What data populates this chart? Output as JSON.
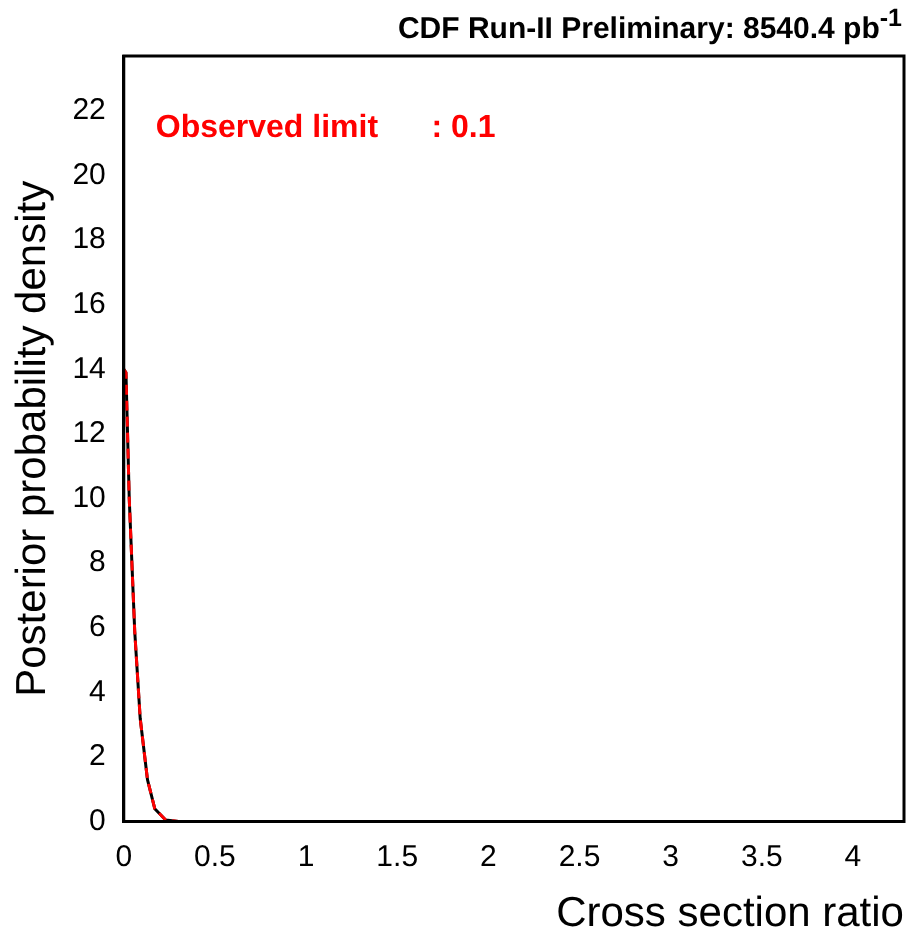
{
  "chart_data": {
    "type": "line",
    "title": "CDF Run-II Preliminary:  8540.4 pb$^{-1}$",
    "xlabel": "Cross section ratio",
    "ylabel": "Posterior probability density",
    "annotations": [
      "Observed limit         : 0.1"
    ],
    "x": [
      0,
      0.012,
      0.03,
      0.06,
      0.09,
      0.13,
      0.17,
      0.23,
      0.3
    ],
    "series": [
      {
        "color": "#ff0000",
        "line_style": "dashed",
        "values": [
          14,
          13.9,
          10,
          5.9,
          3.2,
          1.3,
          0.4,
          0.05,
          0
        ]
      },
      {
        "color": "#000000",
        "line_style": "solid",
        "values": [
          14,
          13.9,
          10,
          5.9,
          3.2,
          1.3,
          0.4,
          0.05,
          0
        ]
      }
    ],
    "xlim": [
      0,
      4.28
    ],
    "xticks": [
      0,
      0.5,
      1,
      1.5,
      2,
      2.5,
      3,
      3.5,
      4
    ],
    "ylim": [
      0,
      23.7
    ],
    "yticks": [
      0,
      2,
      4,
      6,
      8,
      10,
      12,
      14,
      16,
      18,
      20,
      22
    ],
    "grid": false,
    "legend": false,
    "marker": "none"
  }
}
